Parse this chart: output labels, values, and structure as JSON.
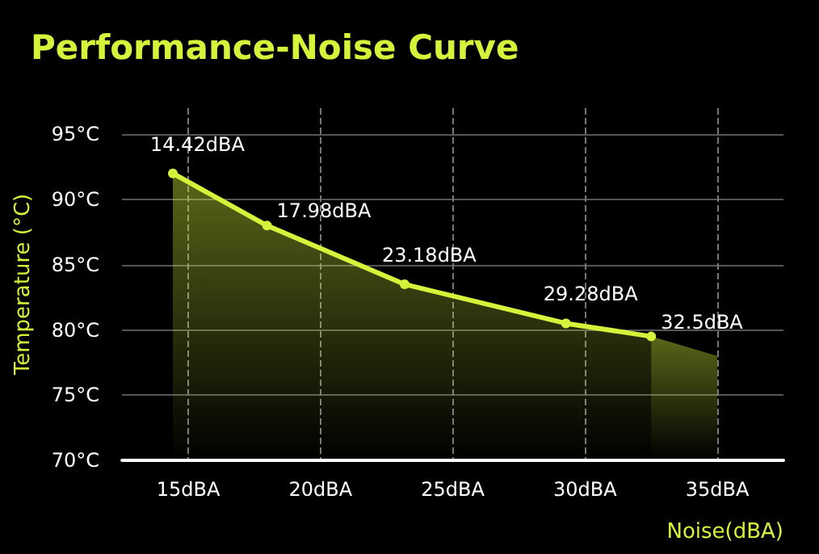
{
  "chart_data": {
    "type": "area",
    "title": "Performance-Noise Curve",
    "xlabel": "Noise(dBA)",
    "ylabel": "Temperature (°C)",
    "series": [
      {
        "color": "#d6f23a",
        "x": [
          14.42,
          17.98,
          23.18,
          29.28,
          32.5
        ],
        "values": [
          92,
          88,
          83.5,
          80.5,
          79.5
        ],
        "marker": "circle",
        "line_style": "solid"
      },
      {
        "color": "#d6f23a",
        "x": [
          32.5,
          35
        ],
        "values": [
          79.5,
          78
        ],
        "marker": "none"
      }
    ],
    "xlim": [
      12.5,
      37.5
    ],
    "xticks": [
      {
        "value": 15,
        "label": "15dBA"
      },
      {
        "value": 20,
        "label": "20dBA"
      },
      {
        "value": 25,
        "label": "25dBA"
      },
      {
        "value": 30,
        "label": "30dBA"
      },
      {
        "value": 35,
        "label": "35dBA"
      }
    ],
    "ylim": [
      70,
      97
    ],
    "yticks": [
      {
        "value": 70,
        "label": "70°C"
      },
      {
        "value": 75,
        "label": "75°C"
      },
      {
        "value": 80,
        "label": "80°C"
      },
      {
        "value": 85,
        "label": "85°C"
      },
      {
        "value": 90,
        "label": "90°C"
      },
      {
        "value": 95,
        "label": "95°C"
      }
    ],
    "grid": true,
    "annotations": [
      {
        "text": "14.42dBA",
        "x": 14.42,
        "y": 92
      },
      {
        "text": "17.98dBA",
        "x": 17.98,
        "y": 88
      },
      {
        "text": "23.18dBA",
        "x": 23.18,
        "y": 83.5
      },
      {
        "text": "29.28dBA",
        "x": 29.28,
        "y": 80.5
      },
      {
        "text": "32.5dBA",
        "x": 32.5,
        "y": 79.5
      }
    ]
  }
}
